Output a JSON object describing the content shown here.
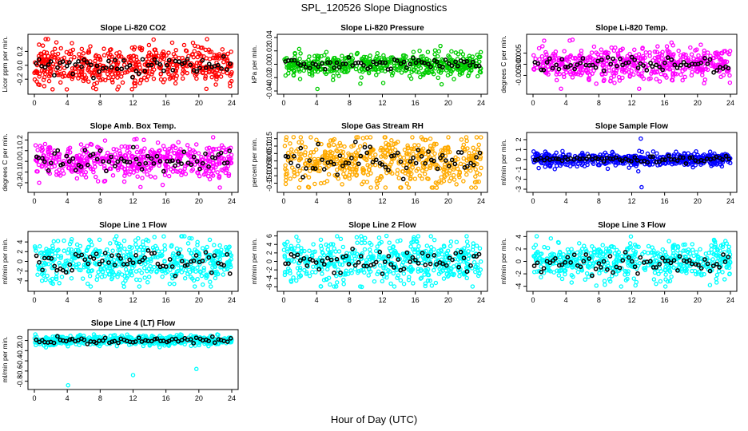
{
  "figure": {
    "title": "SPL_120526  Slope Diagnostics",
    "xlabel": "Hour of Day (UTC)",
    "overlay_color": "#000000"
  },
  "chart_data": [
    {
      "type": "scatter",
      "title": "Slope Li-820 CO2",
      "ylabel": "Licor ppm per min.",
      "color": "#ff0000",
      "xlim": [
        0,
        24
      ],
      "ylim": [
        -0.37,
        0.4
      ],
      "yticks": [
        -0.2,
        0.0,
        0.2
      ],
      "ytick_labels": [
        "-0.2",
        "0.0",
        "0.2"
      ],
      "xticks": [
        0,
        4,
        8,
        12,
        16,
        20,
        24
      ],
      "spread": 0.15,
      "seed": 11,
      "outliers": [
        [
          14.5,
          0.37
        ],
        [
          1.2,
          -0.3
        ]
      ]
    },
    {
      "type": "scatter",
      "title": "Slope Li-820 Pressure",
      "ylabel": "kPa per min.",
      "color": "#00cc00",
      "xlim": [
        0,
        24
      ],
      "ylim": [
        -0.04,
        0.04
      ],
      "yticks": [
        -0.04,
        -0.02,
        0.0,
        0.02,
        0.04
      ],
      "ytick_labels": [
        "-0.04",
        "-0.02",
        "0.00",
        "0.02",
        "0.04"
      ],
      "xticks": [
        0,
        4,
        8,
        12,
        16,
        20,
        24
      ],
      "spread": 0.008,
      "seed": 23,
      "outliers": [
        [
          4.1,
          -0.037
        ],
        [
          12.1,
          -0.028
        ],
        [
          19.2,
          -0.03
        ]
      ]
    },
    {
      "type": "scatter",
      "title": "Slope Li-820 Temp.",
      "ylabel": "degrees C per min.",
      "color": "#ff00ff",
      "xlim": [
        0,
        24
      ],
      "ylim": [
        -0.012,
        0.012
      ],
      "yticks": [
        -0.005,
        0.0,
        0.005
      ],
      "ytick_labels": [
        "-0.005",
        "0.000",
        "0.005"
      ],
      "xticks": [
        0,
        4,
        8,
        12,
        16,
        20,
        24
      ],
      "spread": 0.0035,
      "seed": 37,
      "outliers": [
        [
          4.8,
          0.011
        ],
        [
          3.4,
          -0.011
        ],
        [
          12.9,
          -0.011
        ]
      ]
    },
    {
      "type": "scatter",
      "title": "Slope Amb. Box Temp.",
      "ylabel": "degrees C per min.",
      "color": "#ff00ff",
      "xlim": [
        0,
        24
      ],
      "ylim": [
        -0.26,
        0.24
      ],
      "yticks": [
        -0.2,
        -0.1,
        0.0,
        0.1,
        0.2
      ],
      "ytick_labels": [
        "-0.2",
        "-0.1",
        "0.0",
        "0.1",
        "0.2"
      ],
      "xticks": [
        0,
        4,
        8,
        12,
        16,
        20,
        24
      ],
      "spread": 0.08,
      "seed": 41,
      "outliers": [
        [
          12.9,
          -0.24
        ],
        [
          15.6,
          -0.22
        ]
      ]
    },
    {
      "type": "scatter",
      "title": "Slope Gas Stream RH",
      "ylabel": "percent per min.",
      "color": "#ffaa00",
      "xlim": [
        0,
        24
      ],
      "ylim": [
        -0.19,
        0.17
      ],
      "yticks": [
        -0.15,
        -0.1,
        -0.05,
        0.0,
        0.05,
        0.1,
        0.15
      ],
      "ytick_labels": [
        "-0.15",
        "-0.10",
        "-0.05",
        "0.00",
        "0.05",
        "0.10",
        "0.15"
      ],
      "xticks": [
        0,
        4,
        8,
        12,
        16,
        20,
        24
      ],
      "spread": 0.085,
      "seed": 53,
      "outliers": [
        [
          1.2,
          0.16
        ],
        [
          18.6,
          -0.18
        ]
      ]
    },
    {
      "type": "scatter",
      "title": "Slope Sample Flow",
      "ylabel": "ml/min per min.",
      "color": "#0000ff",
      "xlim": [
        0,
        24
      ],
      "ylim": [
        -3,
        2.4
      ],
      "yticks": [
        -3,
        -2,
        -1,
        0,
        1,
        2
      ],
      "ytick_labels": [
        "-3",
        "-2",
        "-1",
        "0",
        "1",
        "2"
      ],
      "xticks": [
        0,
        4,
        8,
        12,
        16,
        20,
        24
      ],
      "spread": 0.3,
      "seed": 67,
      "outliers": [
        [
          13.1,
          2.1
        ],
        [
          13.2,
          -2.8
        ],
        [
          12.8,
          -1.2
        ]
      ]
    },
    {
      "type": "scatter",
      "title": "Slope Line 1 Flow",
      "ylabel": "ml/min per min.",
      "color": "#00ffff",
      "xlim": [
        0,
        24
      ],
      "ylim": [
        -5.5,
        5.5
      ],
      "yticks": [
        -4,
        -2,
        0,
        2,
        4
      ],
      "ytick_labels": [
        "-4",
        "-2",
        "0",
        "2",
        "4"
      ],
      "xticks": [
        0,
        4,
        8,
        12,
        16,
        20,
        24
      ],
      "spread": 2.2,
      "seed": 79,
      "outliers": [
        [
          14.6,
          5.0
        ],
        [
          10.9,
          -5.2
        ]
      ]
    },
    {
      "type": "scatter",
      "title": "Slope Line 2 Flow",
      "ylabel": "ml/min per min.",
      "color": "#00ffff",
      "xlim": [
        0,
        24
      ],
      "ylim": [
        -6.3,
        6.3
      ],
      "yticks": [
        -6,
        -4,
        -2,
        0,
        2,
        4,
        6
      ],
      "ytick_labels": [
        "-6",
        "-4",
        "-2",
        "0",
        "2",
        "4",
        "6"
      ],
      "xticks": [
        0,
        4,
        8,
        12,
        16,
        20,
        24
      ],
      "spread": 2.6,
      "seed": 89,
      "outliers": [
        [
          12.5,
          6.0
        ],
        [
          9.5,
          -6.0
        ]
      ]
    },
    {
      "type": "scatter",
      "title": "Slope Line 3 Flow",
      "ylabel": "ml/min per min.",
      "color": "#00ffff",
      "xlim": [
        0,
        24
      ],
      "ylim": [
        -4.3,
        4.3
      ],
      "yticks": [
        -4,
        -2,
        0,
        2,
        4
      ],
      "ytick_labels": [
        "-4",
        "-2",
        "0",
        "2",
        "4"
      ],
      "xticks": [
        0,
        4,
        8,
        12,
        16,
        20,
        24
      ],
      "spread": 1.6,
      "seed": 97,
      "outliers": [
        [
          11.9,
          4.0
        ],
        [
          7.7,
          -3.9
        ]
      ]
    },
    {
      "type": "scatter",
      "title": "Slope Line 4 (LT) Flow",
      "ylabel": "ml/min per min.",
      "color": "#00ffff",
      "xlim": [
        0,
        24
      ],
      "ylim": [
        -0.9,
        0.15
      ],
      "yticks": [
        -0.8,
        -0.6,
        -0.4,
        -0.2,
        0.0
      ],
      "ytick_labels": [
        "-0.8",
        "-0.6",
        "-0.4",
        "-0.2",
        "0.0"
      ],
      "xticks": [
        0,
        4,
        8,
        12,
        16,
        20,
        24
      ],
      "spread": 0.05,
      "seed": 103,
      "outliers": [
        [
          4.1,
          -0.88
        ],
        [
          12.0,
          -0.68
        ],
        [
          19.7,
          -0.56
        ]
      ]
    }
  ]
}
